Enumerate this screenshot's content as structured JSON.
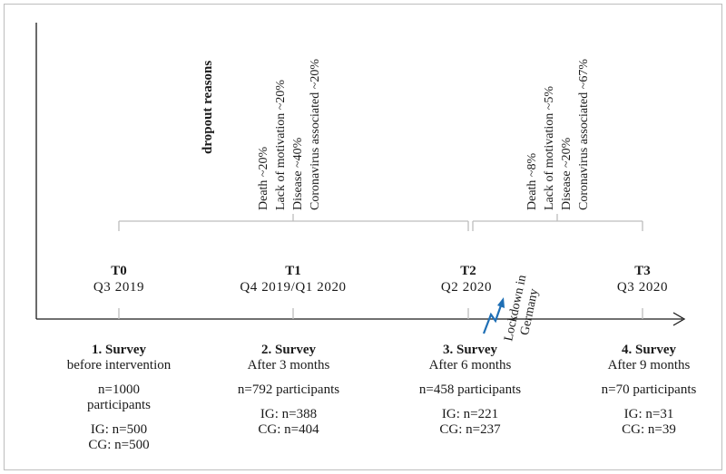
{
  "dropout_title": "dropout reasons",
  "dropout_groups": [
    {
      "reasons": [
        "Death ~20%",
        "Lack of motivation ~20%",
        "Disease ~40%",
        "Coronavirus associated ~20%"
      ]
    },
    {
      "reasons": [
        "Death     ~8%",
        "Lack of motivation    ~5%",
        "Disease ~20%",
        "Coronavirus associated ~67%"
      ]
    }
  ],
  "timepoints": [
    {
      "label": "T0",
      "date": "Q3 2019"
    },
    {
      "label": "T1",
      "date": "Q4 2019/Q1 2020"
    },
    {
      "label": "T2",
      "date": "Q2 2020"
    },
    {
      "label": "T3",
      "date": "Q3 2020"
    }
  ],
  "lockdown": {
    "line1": "Lockdown in",
    "line2": "Germany"
  },
  "surveys": [
    {
      "title": "1. Survey",
      "subtitle": "before intervention",
      "participants_line1": "n=1000",
      "participants_line2": "participants",
      "ig": "IG: n=500",
      "cg": "CG: n=500"
    },
    {
      "title": "2. Survey",
      "subtitle": "After 3 months",
      "participants_line1": "n=792 participants",
      "participants_line2": "",
      "ig": "IG: n=388",
      "cg": "CG: n=404"
    },
    {
      "title": "3. Survey",
      "subtitle": "After 6 months",
      "participants_line1": "n=458 participants",
      "participants_line2": "",
      "ig": "IG: n=221",
      "cg": "CG: n=237"
    },
    {
      "title": "4. Survey",
      "subtitle": "After 9 months",
      "participants_line1": "n=70 participants",
      "participants_line2": "",
      "ig": "IG: n=31",
      "cg": "CG: n=39"
    }
  ],
  "colors": {
    "axis": "#1a1a1a",
    "bracket": "#bdbdbd",
    "lockdown_arrow": "#1f6fb5"
  }
}
